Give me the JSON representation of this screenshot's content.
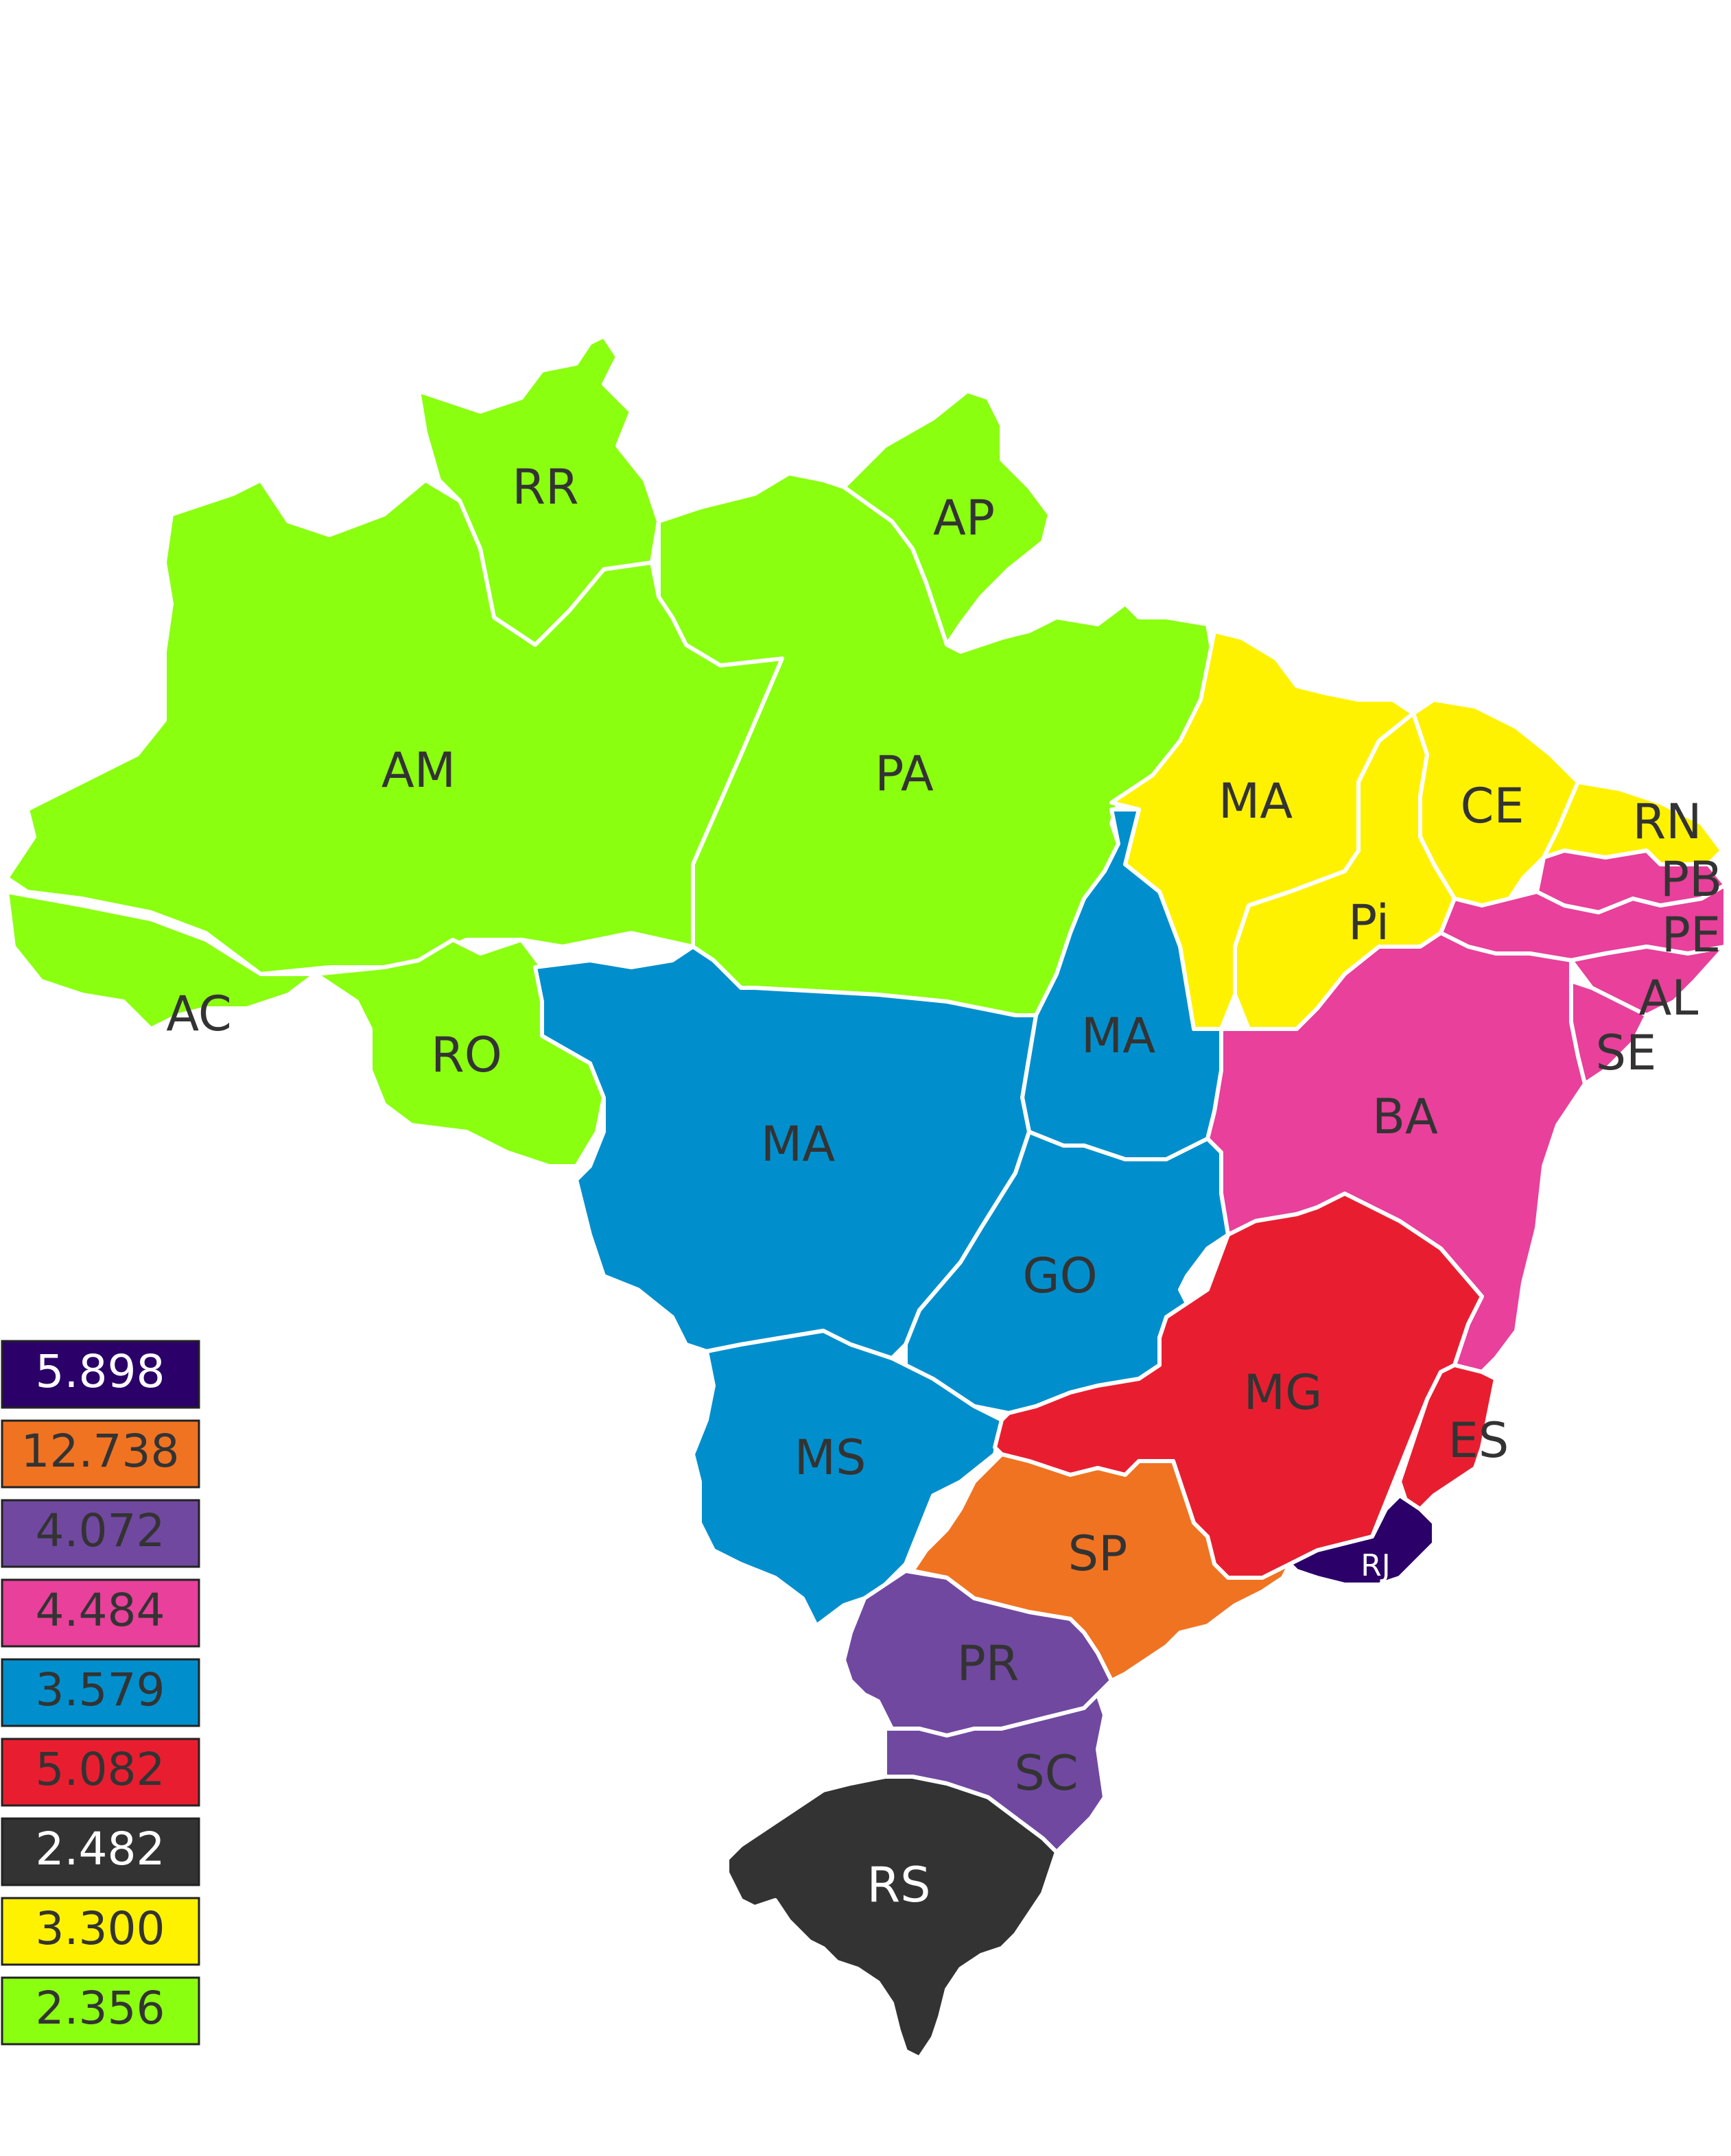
{
  "states": [
    {
      "id": "rr",
      "label": "RR",
      "group": "green"
    },
    {
      "id": "ap",
      "label": "AP",
      "group": "green"
    },
    {
      "id": "am",
      "label": "AM",
      "group": "green"
    },
    {
      "id": "pa",
      "label": "PA",
      "group": "green"
    },
    {
      "id": "ac",
      "label": "AC",
      "group": "green"
    },
    {
      "id": "ro",
      "label": "RO",
      "group": "green"
    },
    {
      "id": "ma-north",
      "label": "MA",
      "group": "yellow"
    },
    {
      "id": "ce",
      "label": "CE",
      "group": "yellow"
    },
    {
      "id": "rn",
      "label": "RN",
      "group": "yellow"
    },
    {
      "id": "pi",
      "label": "Pi",
      "group": "yellow"
    },
    {
      "id": "pb",
      "label": "PB",
      "group": "pink"
    },
    {
      "id": "pe",
      "label": "PE",
      "group": "pink"
    },
    {
      "id": "al",
      "label": "AL",
      "group": "pink"
    },
    {
      "id": "se",
      "label": "SE",
      "group": "pink"
    },
    {
      "id": "ba",
      "label": "BA",
      "group": "pink"
    },
    {
      "id": "to",
      "label": "MA",
      "group": "blue"
    },
    {
      "id": "mt",
      "label": "MA",
      "group": "blue"
    },
    {
      "id": "go",
      "label": "GO",
      "group": "blue"
    },
    {
      "id": "ms",
      "label": "MS",
      "group": "blue"
    },
    {
      "id": "mg",
      "label": "MG",
      "group": "red"
    },
    {
      "id": "es",
      "label": "ES",
      "group": "red"
    },
    {
      "id": "rj",
      "label": "RJ",
      "group": "navy"
    },
    {
      "id": "sp",
      "label": "SP",
      "group": "orange"
    },
    {
      "id": "pr",
      "label": "PR",
      "group": "purple"
    },
    {
      "id": "sc",
      "label": "SC",
      "group": "purple"
    },
    {
      "id": "rs",
      "label": "RS",
      "group": "dark"
    }
  ],
  "legend": [
    {
      "value": "5.898",
      "group": "navy",
      "text_color": "#ffffff"
    },
    {
      "value": "12.738",
      "group": "orange",
      "text_color": "#333333"
    },
    {
      "value": "4.072",
      "group": "purple",
      "text_color": "#333333"
    },
    {
      "value": "4.484",
      "group": "pink",
      "text_color": "#333333"
    },
    {
      "value": "3.579",
      "group": "blue",
      "text_color": "#333333"
    },
    {
      "value": "5.082",
      "group": "red",
      "text_color": "#333333"
    },
    {
      "value": "2.482",
      "group": "dark",
      "text_color": "#ffffff"
    },
    {
      "value": "3.300",
      "group": "yellow",
      "text_color": "#333333"
    },
    {
      "value": "2.356",
      "group": "green",
      "text_color": "#333333"
    }
  ],
  "colors": {
    "navy": "#2b0069",
    "orange": "#f07322",
    "purple": "#7048a0",
    "pink": "#e8409b",
    "blue": "#008fcc",
    "red": "#e81e30",
    "dark": "#333333",
    "yellow": "#fff200",
    "green": "#8bff10"
  }
}
